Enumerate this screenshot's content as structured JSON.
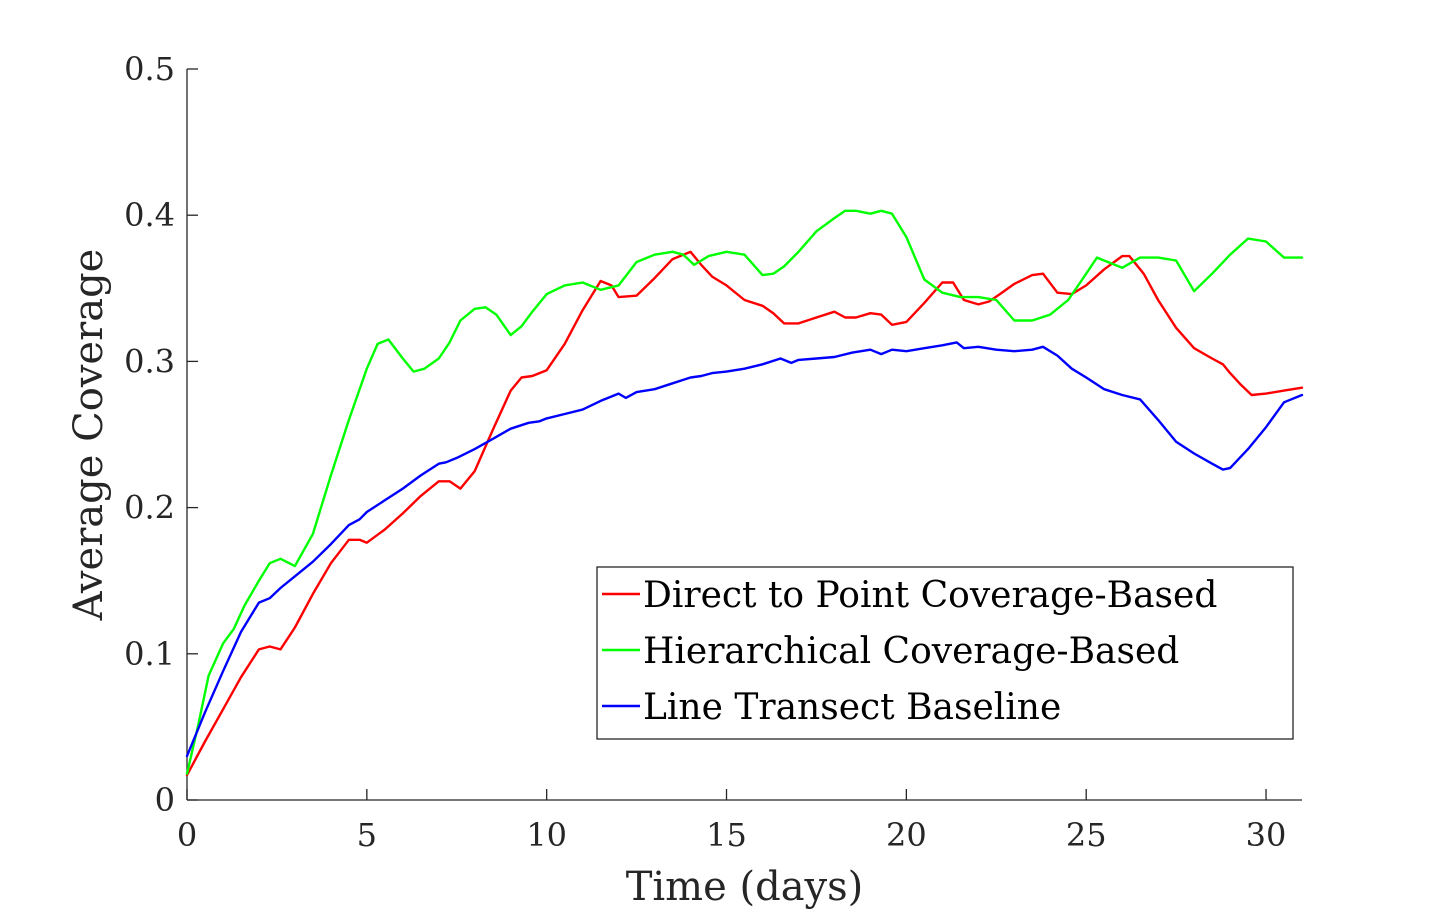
{
  "chart_data": {
    "type": "line",
    "xlabel": "Time (days)",
    "ylabel": "Average Coverage",
    "xlim": [
      0,
      31
    ],
    "ylim": [
      0,
      0.5
    ],
    "xticks": [
      0,
      5,
      10,
      15,
      20,
      25,
      30
    ],
    "xtick_labels": [
      "0",
      "5",
      "10",
      "15",
      "20",
      "25",
      "30"
    ],
    "yticks": [
      0,
      0.1,
      0.2,
      0.3,
      0.4,
      0.5
    ],
    "ytick_labels": [
      "0",
      "0.1",
      "0.2",
      "0.3",
      "0.4",
      "0.5"
    ],
    "grid": false,
    "legend_position": "bottom-right",
    "series": [
      {
        "name": "Direct to Point Coverage-Based",
        "color": "#ff0000",
        "x": [
          0,
          0.5,
          1,
          1.5,
          2,
          2.3,
          2.6,
          3,
          3.5,
          4,
          4.5,
          4.8,
          5,
          5.5,
          6,
          6.5,
          7,
          7.3,
          7.6,
          8,
          8.5,
          9,
          9.3,
          9.6,
          10,
          10.5,
          11,
          11.5,
          11.8,
          12,
          12.5,
          13,
          13.5,
          14,
          14.3,
          14.6,
          15,
          15.5,
          16,
          16.3,
          16.6,
          17,
          17.5,
          18,
          18.3,
          18.6,
          19,
          19.3,
          19.6,
          20,
          20.5,
          21,
          21.3,
          21.6,
          22,
          22.3,
          22.6,
          23,
          23.5,
          23.8,
          24.2,
          24.6,
          25,
          25.5,
          26,
          26.2,
          26.6,
          27,
          27.5,
          28,
          28.5,
          28.8,
          29,
          29.3,
          29.6,
          30,
          30.5,
          31
        ],
        "values": [
          0.017,
          0.04,
          0.062,
          0.084,
          0.103,
          0.105,
          0.103,
          0.118,
          0.141,
          0.162,
          0.178,
          0.178,
          0.176,
          0.185,
          0.196,
          0.208,
          0.218,
          0.218,
          0.213,
          0.225,
          0.253,
          0.28,
          0.289,
          0.29,
          0.294,
          0.312,
          0.335,
          0.355,
          0.352,
          0.344,
          0.345,
          0.357,
          0.37,
          0.375,
          0.366,
          0.358,
          0.352,
          0.342,
          0.338,
          0.333,
          0.326,
          0.326,
          0.33,
          0.334,
          0.33,
          0.33,
          0.333,
          0.332,
          0.325,
          0.327,
          0.34,
          0.354,
          0.354,
          0.342,
          0.339,
          0.341,
          0.346,
          0.353,
          0.359,
          0.36,
          0.347,
          0.346,
          0.352,
          0.363,
          0.372,
          0.372,
          0.36,
          0.342,
          0.323,
          0.309,
          0.302,
          0.298,
          0.292,
          0.284,
          0.277,
          0.278,
          0.28,
          0.282
        ]
      },
      {
        "name": "Hierarchical Coverage-Based",
        "color": "#00ff00",
        "x": [
          0,
          0.3,
          0.6,
          1,
          1.3,
          1.6,
          2,
          2.3,
          2.6,
          3,
          3.5,
          4,
          4.5,
          5,
          5.3,
          5.6,
          6,
          6.3,
          6.6,
          7,
          7.3,
          7.6,
          8,
          8.3,
          8.6,
          9,
          9.3,
          9.6,
          10,
          10.5,
          11,
          11.5,
          12,
          12.5,
          13,
          13.5,
          13.8,
          14.1,
          14.5,
          15,
          15.5,
          16,
          16.3,
          16.6,
          17,
          17.5,
          18,
          18.3,
          18.6,
          19,
          19.3,
          19.6,
          20,
          20.5,
          21,
          21.5,
          22,
          22.5,
          23,
          23.5,
          24,
          24.5,
          25,
          25.3,
          25.6,
          26,
          26.5,
          27,
          27.5,
          28,
          28.5,
          29,
          29.5,
          30,
          30.5,
          31
        ],
        "values": [
          0.018,
          0.05,
          0.085,
          0.107,
          0.117,
          0.133,
          0.15,
          0.162,
          0.165,
          0.16,
          0.182,
          0.222,
          0.26,
          0.295,
          0.312,
          0.315,
          0.302,
          0.293,
          0.295,
          0.302,
          0.313,
          0.328,
          0.336,
          0.337,
          0.332,
          0.318,
          0.324,
          0.334,
          0.346,
          0.352,
          0.354,
          0.349,
          0.352,
          0.368,
          0.373,
          0.375,
          0.373,
          0.366,
          0.372,
          0.375,
          0.373,
          0.359,
          0.36,
          0.365,
          0.375,
          0.389,
          0.398,
          0.403,
          0.403,
          0.401,
          0.403,
          0.401,
          0.385,
          0.356,
          0.347,
          0.344,
          0.344,
          0.342,
          0.328,
          0.328,
          0.332,
          0.342,
          0.36,
          0.371,
          0.368,
          0.364,
          0.371,
          0.371,
          0.369,
          0.348,
          0.36,
          0.373,
          0.384,
          0.382,
          0.371,
          0.371
        ]
      },
      {
        "name": "Line Transect Baseline",
        "color": "#0000ff",
        "x": [
          0,
          0.5,
          1,
          1.5,
          2,
          2.3,
          2.6,
          3,
          3.5,
          4,
          4.5,
          4.8,
          5,
          5.5,
          6,
          6.5,
          7,
          7.2,
          7.5,
          8,
          8.5,
          9,
          9.5,
          9.8,
          10,
          10.5,
          11,
          11.5,
          12,
          12.2,
          12.5,
          13,
          13.5,
          14,
          14.3,
          14.6,
          15,
          15.5,
          16,
          16.5,
          16.8,
          17,
          17.5,
          18,
          18.5,
          19,
          19.3,
          19.6,
          20,
          20.5,
          21,
          21.4,
          21.6,
          22,
          22.5,
          23,
          23.5,
          23.8,
          24.2,
          24.6,
          25,
          25.5,
          26,
          26.5,
          27,
          27.5,
          28,
          28.5,
          28.8,
          29,
          29.5,
          30,
          30.5,
          31
        ],
        "values": [
          0.03,
          0.06,
          0.088,
          0.115,
          0.135,
          0.138,
          0.145,
          0.153,
          0.163,
          0.175,
          0.188,
          0.192,
          0.197,
          0.205,
          0.213,
          0.222,
          0.23,
          0.231,
          0.234,
          0.24,
          0.247,
          0.254,
          0.258,
          0.259,
          0.261,
          0.264,
          0.267,
          0.273,
          0.278,
          0.275,
          0.279,
          0.281,
          0.285,
          0.289,
          0.29,
          0.292,
          0.293,
          0.295,
          0.298,
          0.302,
          0.299,
          0.301,
          0.302,
          0.303,
          0.306,
          0.308,
          0.305,
          0.308,
          0.307,
          0.309,
          0.311,
          0.313,
          0.309,
          0.31,
          0.308,
          0.307,
          0.308,
          0.31,
          0.304,
          0.295,
          0.289,
          0.281,
          0.277,
          0.274,
          0.26,
          0.245,
          0.237,
          0.23,
          0.226,
          0.227,
          0.24,
          0.255,
          0.272,
          0.277
        ]
      }
    ]
  }
}
